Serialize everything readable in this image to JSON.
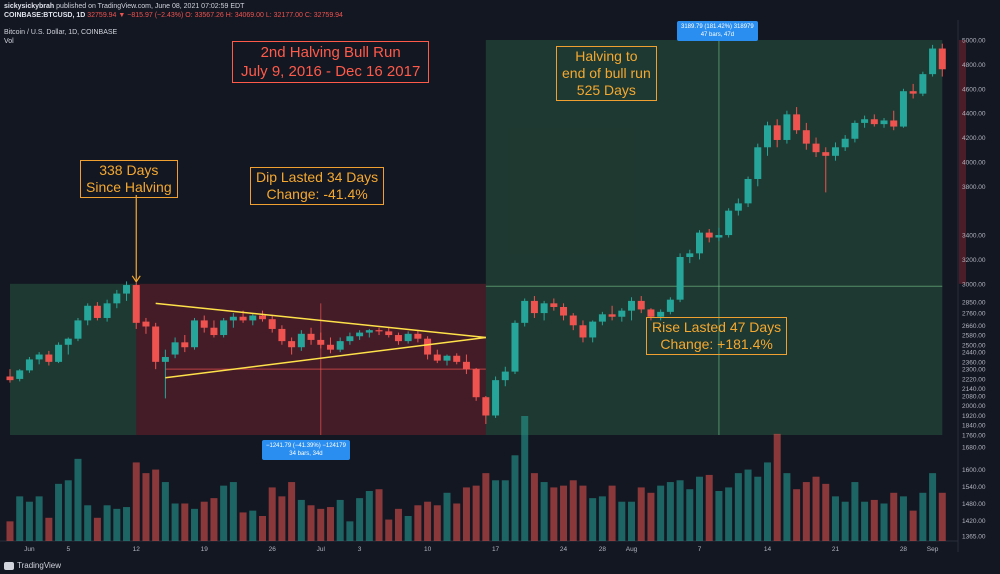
{
  "header": {
    "publisher": "sickysickybrah",
    "published": "published on TradingView.com, June 08, 2021 07:02:59 EDT",
    "symbol": "COINBASE:BTCUSD, 1D",
    "last": "32759.94",
    "change": "▼ −815.97 (−2.43%)",
    "ohlc_o": "O: 33567.26",
    "ohlc_h": "H: 34069.00",
    "ohlc_l": "L: 32177.00",
    "ohlc_c": "C: 32759.94",
    "pane_title": "Bitcoin / U.S. Dollar, 1D, COINBASE",
    "vol_label": "Vol"
  },
  "annotations": {
    "title_lines": [
      "2nd Halving Bull Run",
      "July 9, 2016 - Dec 16 2017"
    ],
    "since_halving": [
      "338 Days",
      "Since Halving"
    ],
    "dip": [
      "Dip Lasted 34 Days",
      "Change: -41.4%"
    ],
    "halving_end": [
      "Halving to",
      "end of bull run",
      "525 Days"
    ],
    "rise": [
      "Rise Lasted 47 Days",
      "Change: +181.4%"
    ],
    "measure_dip": [
      "−1241.79 (−41.39%) −124179",
      "34 bars, 34d"
    ],
    "measure_rise": [
      "3189.79 (181.42%) 318979",
      "47 bars, 47d"
    ]
  },
  "footer": {
    "logo": "TradingView"
  },
  "colors": {
    "up": "#26a69a",
    "down": "#ef5350",
    "bg": "#131722",
    "annotation": "#f5a830",
    "title": "#ff5a4a",
    "trendline": "#ffe14a"
  },
  "chart_data": {
    "type": "candlestick",
    "y_ticks": [
      1365,
      1420,
      1480,
      1540,
      1600,
      1680,
      1760,
      1840,
      1920,
      2000,
      2080,
      2140,
      2220,
      2300,
      2360,
      2440,
      2500,
      2580,
      2660,
      2760,
      2850,
      3000,
      3200,
      3400,
      3800,
      4000,
      4200,
      4400,
      4600,
      4800,
      5000
    ],
    "y_tick_labels": [
      "1365.00",
      "1420.00",
      "1480.00",
      "1540.00",
      "1600.00",
      "1680.00",
      "1760.00",
      "1840.00",
      "1920.00",
      "2000.00",
      "2080.00",
      "2140.00",
      "2220.00",
      "2300.00",
      "2360.00",
      "2440.00",
      "2500.00",
      "2580.00",
      "2660.00",
      "2760.00",
      "2850.00",
      "3000.00",
      "3200.00",
      "3400.00",
      "3800.00",
      "4000.00",
      "4200.00",
      "4400.00",
      "4600.00",
      "4800.00",
      "5000.00"
    ],
    "x_tick_labels": [
      "Jun",
      "5",
      "12",
      "19",
      "26",
      "Jul",
      "3",
      "10",
      "17",
      "24",
      "28",
      "Aug",
      "7",
      "14",
      "21",
      "28",
      "Sep"
    ],
    "x_tick_days": [
      1,
      5,
      12,
      19,
      26,
      31,
      35,
      42,
      49,
      56,
      60,
      63,
      70,
      77,
      84,
      91,
      94
    ],
    "axis_extents": {
      "day_min": -1,
      "day_max": 96
    },
    "candles": [
      {
        "day": -1,
        "o": 2240,
        "h": 2300,
        "l": 2190,
        "c": 2210,
        "v": 11
      },
      {
        "day": 0,
        "o": 2220,
        "h": 2300,
        "l": 2200,
        "c": 2290,
        "v": 25
      },
      {
        "day": 1,
        "o": 2290,
        "h": 2400,
        "l": 2270,
        "c": 2380,
        "v": 22
      },
      {
        "day": 2,
        "o": 2380,
        "h": 2440,
        "l": 2340,
        "c": 2420,
        "v": 25
      },
      {
        "day": 3,
        "o": 2420,
        "h": 2450,
        "l": 2330,
        "c": 2360,
        "v": 13
      },
      {
        "day": 4,
        "o": 2360,
        "h": 2520,
        "l": 2350,
        "c": 2500,
        "v": 32
      },
      {
        "day": 5,
        "o": 2500,
        "h": 2560,
        "l": 2420,
        "c": 2550,
        "v": 34
      },
      {
        "day": 6,
        "o": 2550,
        "h": 2720,
        "l": 2530,
        "c": 2700,
        "v": 46
      },
      {
        "day": 7,
        "o": 2700,
        "h": 2840,
        "l": 2660,
        "c": 2820,
        "v": 20
      },
      {
        "day": 8,
        "o": 2820,
        "h": 2850,
        "l": 2700,
        "c": 2720,
        "v": 13
      },
      {
        "day": 9,
        "o": 2720,
        "h": 2870,
        "l": 2690,
        "c": 2840,
        "v": 20
      },
      {
        "day": 10,
        "o": 2840,
        "h": 2950,
        "l": 2800,
        "c": 2920,
        "v": 18
      },
      {
        "day": 11,
        "o": 2920,
        "h": 3020,
        "l": 2860,
        "c": 2990,
        "v": 19
      },
      {
        "day": 12,
        "o": 2990,
        "h": 3010,
        "l": 2630,
        "c": 2680,
        "v": 44
      },
      {
        "day": 13,
        "o": 2690,
        "h": 2720,
        "l": 2590,
        "c": 2650,
        "v": 38
      },
      {
        "day": 14,
        "o": 2650,
        "h": 2680,
        "l": 2300,
        "c": 2360,
        "v": 40
      },
      {
        "day": 15,
        "o": 2360,
        "h": 2460,
        "l": 2060,
        "c": 2400,
        "v": 33
      },
      {
        "day": 16,
        "o": 2420,
        "h": 2560,
        "l": 2390,
        "c": 2520,
        "v": 21
      },
      {
        "day": 17,
        "o": 2520,
        "h": 2580,
        "l": 2440,
        "c": 2480,
        "v": 21
      },
      {
        "day": 18,
        "o": 2480,
        "h": 2720,
        "l": 2460,
        "c": 2700,
        "v": 18
      },
      {
        "day": 19,
        "o": 2700,
        "h": 2740,
        "l": 2600,
        "c": 2640,
        "v": 22
      },
      {
        "day": 20,
        "o": 2640,
        "h": 2700,
        "l": 2560,
        "c": 2580,
        "v": 24
      },
      {
        "day": 21,
        "o": 2580,
        "h": 2720,
        "l": 2560,
        "c": 2700,
        "v": 31
      },
      {
        "day": 22,
        "o": 2700,
        "h": 2760,
        "l": 2640,
        "c": 2730,
        "v": 33
      },
      {
        "day": 23,
        "o": 2730,
        "h": 2780,
        "l": 2680,
        "c": 2700,
        "v": 16
      },
      {
        "day": 24,
        "o": 2700,
        "h": 2760,
        "l": 2660,
        "c": 2740,
        "v": 17
      },
      {
        "day": 25,
        "o": 2740,
        "h": 2780,
        "l": 2690,
        "c": 2710,
        "v": 14
      },
      {
        "day": 26,
        "o": 2710,
        "h": 2740,
        "l": 2600,
        "c": 2630,
        "v": 30
      },
      {
        "day": 27,
        "o": 2630,
        "h": 2660,
        "l": 2500,
        "c": 2530,
        "v": 25
      },
      {
        "day": 28,
        "o": 2530,
        "h": 2560,
        "l": 2420,
        "c": 2480,
        "v": 33
      },
      {
        "day": 29,
        "o": 2480,
        "h": 2620,
        "l": 2450,
        "c": 2590,
        "v": 23
      },
      {
        "day": 30,
        "o": 2590,
        "h": 2640,
        "l": 2500,
        "c": 2540,
        "v": 20
      },
      {
        "day": 31,
        "o": 2540,
        "h": 2600,
        "l": 2470,
        "c": 2500,
        "v": 18
      },
      {
        "day": 32,
        "o": 2500,
        "h": 2560,
        "l": 2430,
        "c": 2460,
        "v": 19
      },
      {
        "day": 33,
        "o": 2460,
        "h": 2560,
        "l": 2440,
        "c": 2530,
        "v": 23
      },
      {
        "day": 34,
        "o": 2530,
        "h": 2600,
        "l": 2500,
        "c": 2570,
        "v": 11
      },
      {
        "day": 35,
        "o": 2570,
        "h": 2620,
        "l": 2540,
        "c": 2600,
        "v": 24
      },
      {
        "day": 36,
        "o": 2600,
        "h": 2630,
        "l": 2560,
        "c": 2620,
        "v": 28
      },
      {
        "day": 37,
        "o": 2620,
        "h": 2640,
        "l": 2580,
        "c": 2610,
        "v": 29
      },
      {
        "day": 38,
        "o": 2610,
        "h": 2640,
        "l": 2560,
        "c": 2580,
        "v": 12
      },
      {
        "day": 39,
        "o": 2580,
        "h": 2600,
        "l": 2500,
        "c": 2530,
        "v": 18
      },
      {
        "day": 40,
        "o": 2530,
        "h": 2610,
        "l": 2510,
        "c": 2590,
        "v": 14
      },
      {
        "day": 41,
        "o": 2590,
        "h": 2620,
        "l": 2520,
        "c": 2550,
        "v": 20
      },
      {
        "day": 42,
        "o": 2550,
        "h": 2570,
        "l": 2380,
        "c": 2420,
        "v": 22
      },
      {
        "day": 43,
        "o": 2420,
        "h": 2460,
        "l": 2350,
        "c": 2370,
        "v": 20
      },
      {
        "day": 44,
        "o": 2370,
        "h": 2420,
        "l": 2330,
        "c": 2410,
        "v": 27
      },
      {
        "day": 45,
        "o": 2410,
        "h": 2430,
        "l": 2340,
        "c": 2360,
        "v": 21
      },
      {
        "day": 46,
        "o": 2360,
        "h": 2420,
        "l": 2260,
        "c": 2300,
        "v": 30
      },
      {
        "day": 47,
        "o": 2300,
        "h": 2310,
        "l": 2040,
        "c": 2070,
        "v": 31
      },
      {
        "day": 48,
        "o": 2070,
        "h": 2080,
        "l": 1850,
        "c": 1920,
        "v": 38
      },
      {
        "day": 49,
        "o": 1920,
        "h": 2240,
        "l": 1900,
        "c": 2210,
        "v": 34
      },
      {
        "day": 50,
        "o": 2210,
        "h": 2320,
        "l": 2160,
        "c": 2280,
        "v": 34
      },
      {
        "day": 51,
        "o": 2280,
        "h": 2700,
        "l": 2260,
        "c": 2680,
        "v": 48
      },
      {
        "day": 52,
        "o": 2680,
        "h": 2880,
        "l": 2650,
        "c": 2860,
        "v": 70
      },
      {
        "day": 53,
        "o": 2860,
        "h": 2900,
        "l": 2720,
        "c": 2760,
        "v": 38
      },
      {
        "day": 54,
        "o": 2760,
        "h": 2860,
        "l": 2700,
        "c": 2840,
        "v": 33
      },
      {
        "day": 55,
        "o": 2840,
        "h": 2880,
        "l": 2780,
        "c": 2810,
        "v": 30
      },
      {
        "day": 56,
        "o": 2810,
        "h": 2840,
        "l": 2700,
        "c": 2740,
        "v": 31
      },
      {
        "day": 57,
        "o": 2740,
        "h": 2760,
        "l": 2620,
        "c": 2660,
        "v": 34
      },
      {
        "day": 58,
        "o": 2660,
        "h": 2700,
        "l": 2520,
        "c": 2560,
        "v": 31
      },
      {
        "day": 59,
        "o": 2560,
        "h": 2700,
        "l": 2520,
        "c": 2690,
        "v": 24
      },
      {
        "day": 60,
        "o": 2690,
        "h": 2770,
        "l": 2660,
        "c": 2750,
        "v": 25
      },
      {
        "day": 61,
        "o": 2750,
        "h": 2820,
        "l": 2700,
        "c": 2730,
        "v": 31
      },
      {
        "day": 62,
        "o": 2730,
        "h": 2800,
        "l": 2690,
        "c": 2780,
        "v": 22
      },
      {
        "day": 63,
        "o": 2780,
        "h": 2890,
        "l": 2700,
        "c": 2860,
        "v": 22
      },
      {
        "day": 64,
        "o": 2860,
        "h": 2900,
        "l": 2760,
        "c": 2790,
        "v": 30
      },
      {
        "day": 65,
        "o": 2790,
        "h": 2800,
        "l": 2700,
        "c": 2730,
        "v": 27
      },
      {
        "day": 66,
        "o": 2730,
        "h": 2790,
        "l": 2700,
        "c": 2770,
        "v": 31
      },
      {
        "day": 67,
        "o": 2770,
        "h": 2890,
        "l": 2750,
        "c": 2870,
        "v": 33
      },
      {
        "day": 68,
        "o": 2870,
        "h": 3250,
        "l": 2850,
        "c": 3220,
        "v": 34
      },
      {
        "day": 69,
        "o": 3220,
        "h": 3280,
        "l": 3170,
        "c": 3250,
        "v": 29
      },
      {
        "day": 70,
        "o": 3250,
        "h": 3440,
        "l": 3200,
        "c": 3420,
        "v": 36
      },
      {
        "day": 71,
        "o": 3420,
        "h": 3450,
        "l": 3340,
        "c": 3380,
        "v": 37
      },
      {
        "day": 72,
        "o": 3380,
        "h": 3460,
        "l": 3350,
        "c": 3400,
        "v": 28
      },
      {
        "day": 73,
        "o": 3400,
        "h": 3620,
        "l": 3380,
        "c": 3600,
        "v": 30
      },
      {
        "day": 74,
        "o": 3600,
        "h": 3700,
        "l": 3560,
        "c": 3660,
        "v": 38
      },
      {
        "day": 75,
        "o": 3660,
        "h": 3880,
        "l": 3630,
        "c": 3860,
        "v": 40
      },
      {
        "day": 76,
        "o": 3860,
        "h": 4150,
        "l": 3800,
        "c": 4120,
        "v": 36
      },
      {
        "day": 77,
        "o": 4120,
        "h": 4330,
        "l": 4050,
        "c": 4300,
        "v": 44
      },
      {
        "day": 78,
        "o": 4300,
        "h": 4350,
        "l": 4120,
        "c": 4180,
        "v": 60
      },
      {
        "day": 79,
        "o": 4180,
        "h": 4420,
        "l": 4150,
        "c": 4390,
        "v": 38
      },
      {
        "day": 80,
        "o": 4390,
        "h": 4450,
        "l": 4230,
        "c": 4260,
        "v": 29
      },
      {
        "day": 81,
        "o": 4260,
        "h": 4320,
        "l": 4100,
        "c": 4150,
        "v": 33
      },
      {
        "day": 82,
        "o": 4150,
        "h": 4200,
        "l": 4040,
        "c": 4080,
        "v": 36
      },
      {
        "day": 83,
        "o": 4080,
        "h": 4120,
        "l": 3750,
        "c": 4050,
        "v": 32
      },
      {
        "day": 84,
        "o": 4050,
        "h": 4160,
        "l": 4010,
        "c": 4120,
        "v": 25
      },
      {
        "day": 85,
        "o": 4120,
        "h": 4220,
        "l": 4090,
        "c": 4190,
        "v": 22
      },
      {
        "day": 86,
        "o": 4190,
        "h": 4340,
        "l": 4160,
        "c": 4320,
        "v": 33
      },
      {
        "day": 87,
        "o": 4320,
        "h": 4380,
        "l": 4280,
        "c": 4350,
        "v": 22
      },
      {
        "day": 88,
        "o": 4350,
        "h": 4390,
        "l": 4290,
        "c": 4310,
        "v": 23
      },
      {
        "day": 89,
        "o": 4310,
        "h": 4360,
        "l": 4280,
        "c": 4340,
        "v": 21
      },
      {
        "day": 90,
        "o": 4340,
        "h": 4420,
        "l": 4260,
        "c": 4290,
        "v": 27
      },
      {
        "day": 91,
        "o": 4290,
        "h": 4600,
        "l": 4280,
        "c": 4580,
        "v": 25
      },
      {
        "day": 92,
        "o": 4580,
        "h": 4640,
        "l": 4520,
        "c": 4560,
        "v": 17
      },
      {
        "day": 93,
        "o": 4560,
        "h": 4740,
        "l": 4540,
        "c": 4720,
        "v": 27
      },
      {
        "day": 94,
        "o": 4720,
        "h": 4960,
        "l": 4700,
        "c": 4930,
        "v": 38
      },
      {
        "day": 95,
        "o": 4930,
        "h": 4970,
        "l": 4700,
        "c": 4760,
        "v": 27
      }
    ],
    "regions": [
      {
        "name": "pre-halving-rise",
        "from_day": -1,
        "to_day": 12,
        "low": 1760,
        "high": 3000,
        "color": "green"
      },
      {
        "name": "dip",
        "from_day": 12,
        "to_day": 48,
        "low": 1760,
        "high": 3000,
        "color": "red"
      },
      {
        "name": "rise",
        "from_day": 48,
        "to_day": 95,
        "low": 1760,
        "high": 5000,
        "color": "green"
      }
    ],
    "trendlines": [
      {
        "from": {
          "day": 14,
          "price": 2840
        },
        "to": {
          "day": 48,
          "price": 2560
        }
      },
      {
        "from": {
          "day": 15,
          "price": 2230
        },
        "to": {
          "day": 48,
          "price": 2560
        }
      }
    ],
    "measure_lines": [
      {
        "orientation": "horizontal",
        "price": 2300,
        "from_day": 15,
        "to_day": 48
      },
      {
        "orientation": "vertical",
        "day": 31,
        "low": 1760,
        "high": 2840
      },
      {
        "orientation": "horizontal",
        "price": 2980,
        "from_day": 48,
        "to_day": 95
      },
      {
        "orientation": "vertical",
        "day": 72,
        "low": 1760,
        "high": 5000
      }
    ]
  }
}
